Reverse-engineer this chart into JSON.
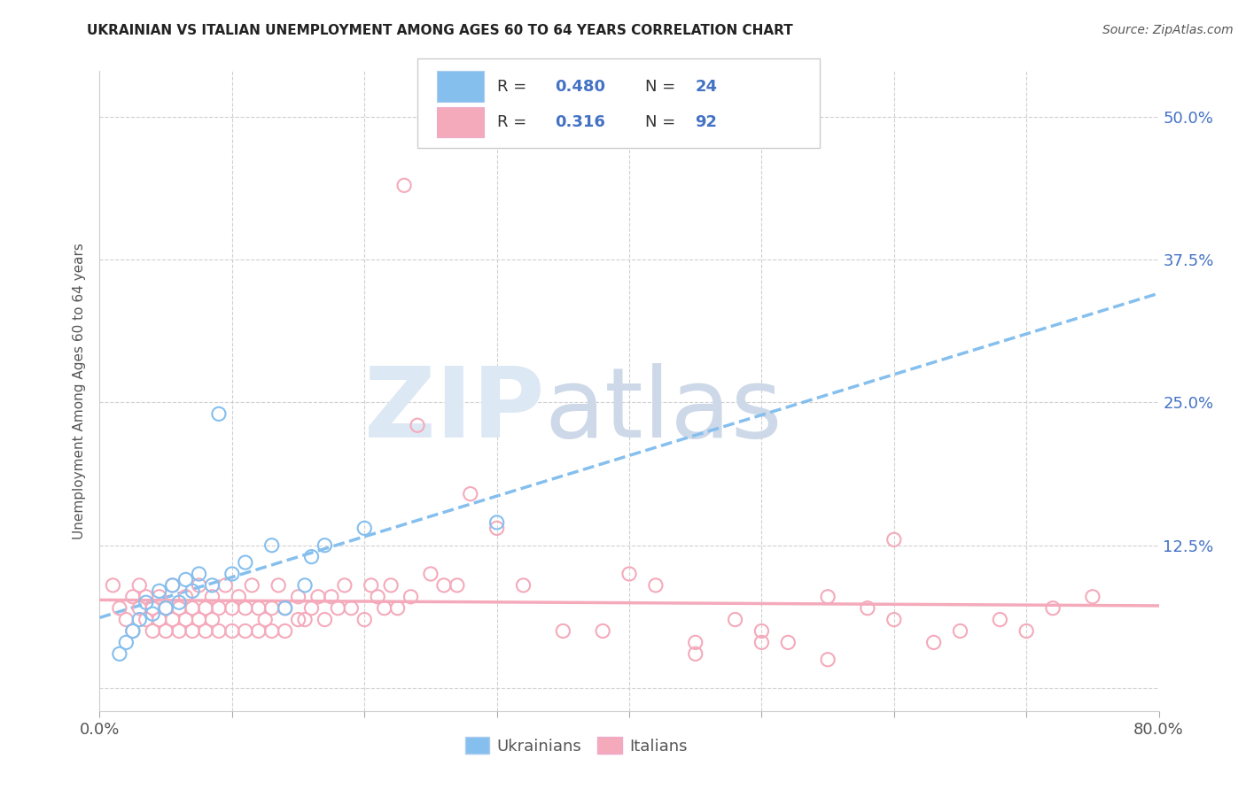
{
  "title": "UKRAINIAN VS ITALIAN UNEMPLOYMENT AMONG AGES 60 TO 64 YEARS CORRELATION CHART",
  "source": "Source: ZipAtlas.com",
  "ylabel": "Unemployment Among Ages 60 to 64 years",
  "xlim": [
    0.0,
    0.8
  ],
  "ylim": [
    -0.02,
    0.54
  ],
  "ytick_positions": [
    0.0,
    0.125,
    0.25,
    0.375,
    0.5
  ],
  "ytick_labels_right": [
    "",
    "12.5%",
    "25.0%",
    "37.5%",
    "50.0%"
  ],
  "background_color": "#ffffff",
  "ukrainian_color": "#85BFEE",
  "italian_color": "#F4AABB",
  "ukrainian_R": 0.48,
  "ukrainian_N": 24,
  "italian_R": 0.316,
  "italian_N": 92,
  "legend_label_ukrainian": "Ukrainians",
  "legend_label_italian": "Italians",
  "grid_color": "#d0d0d0",
  "accent_blue": "#4472C4",
  "ukrainian_scatter_x": [
    0.015,
    0.02,
    0.025,
    0.03,
    0.035,
    0.04,
    0.045,
    0.05,
    0.055,
    0.06,
    0.065,
    0.07,
    0.075,
    0.085,
    0.09,
    0.1,
    0.11,
    0.13,
    0.14,
    0.155,
    0.16,
    0.17,
    0.2,
    0.3
  ],
  "ukrainian_scatter_y": [
    0.03,
    0.04,
    0.05,
    0.06,
    0.075,
    0.065,
    0.085,
    0.07,
    0.09,
    0.075,
    0.095,
    0.085,
    0.1,
    0.09,
    0.24,
    0.1,
    0.11,
    0.125,
    0.07,
    0.09,
    0.115,
    0.125,
    0.14,
    0.145
  ],
  "italian_scatter_x": [
    0.01,
    0.015,
    0.02,
    0.025,
    0.025,
    0.03,
    0.03,
    0.035,
    0.035,
    0.04,
    0.04,
    0.045,
    0.045,
    0.05,
    0.05,
    0.055,
    0.055,
    0.06,
    0.06,
    0.065,
    0.065,
    0.07,
    0.07,
    0.075,
    0.075,
    0.08,
    0.08,
    0.085,
    0.085,
    0.09,
    0.09,
    0.095,
    0.1,
    0.1,
    0.105,
    0.11,
    0.11,
    0.115,
    0.12,
    0.12,
    0.125,
    0.13,
    0.13,
    0.135,
    0.14,
    0.14,
    0.15,
    0.15,
    0.155,
    0.16,
    0.165,
    0.17,
    0.175,
    0.18,
    0.185,
    0.19,
    0.2,
    0.205,
    0.21,
    0.215,
    0.22,
    0.225,
    0.23,
    0.235,
    0.24,
    0.25,
    0.26,
    0.27,
    0.28,
    0.3,
    0.32,
    0.35,
    0.38,
    0.4,
    0.42,
    0.45,
    0.48,
    0.5,
    0.52,
    0.55,
    0.58,
    0.6,
    0.63,
    0.65,
    0.68,
    0.7,
    0.72,
    0.75,
    0.45,
    0.5,
    0.55,
    0.6
  ],
  "italian_scatter_y": [
    0.09,
    0.07,
    0.06,
    0.08,
    0.05,
    0.07,
    0.09,
    0.06,
    0.08,
    0.05,
    0.07,
    0.06,
    0.08,
    0.05,
    0.07,
    0.06,
    0.09,
    0.05,
    0.07,
    0.06,
    0.08,
    0.05,
    0.07,
    0.06,
    0.09,
    0.05,
    0.07,
    0.06,
    0.08,
    0.05,
    0.07,
    0.09,
    0.05,
    0.07,
    0.08,
    0.05,
    0.07,
    0.09,
    0.05,
    0.07,
    0.06,
    0.05,
    0.07,
    0.09,
    0.05,
    0.07,
    0.06,
    0.08,
    0.06,
    0.07,
    0.08,
    0.06,
    0.08,
    0.07,
    0.09,
    0.07,
    0.06,
    0.09,
    0.08,
    0.07,
    0.09,
    0.07,
    0.44,
    0.08,
    0.23,
    0.1,
    0.09,
    0.09,
    0.17,
    0.14,
    0.09,
    0.05,
    0.05,
    0.1,
    0.09,
    0.04,
    0.06,
    0.05,
    0.04,
    0.08,
    0.07,
    0.06,
    0.04,
    0.05,
    0.06,
    0.05,
    0.07,
    0.08,
    0.03,
    0.04,
    0.025,
    0.13
  ]
}
